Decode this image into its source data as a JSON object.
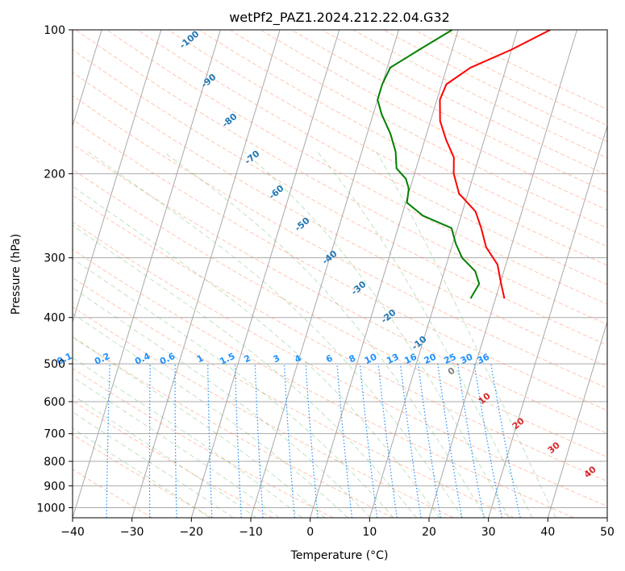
{
  "chart_data": {
    "type": "line",
    "diagram": "skew-T log-p",
    "title": "wetPf2_PAZ1.2024.212.22.04.G32",
    "xlabel": "Temperature (°C)",
    "ylabel": "Pressure (hPa)",
    "xlim": [
      -40,
      50
    ],
    "ylim": [
      1050,
      100
    ],
    "yscale": "log",
    "grid": true,
    "x_ticks": [
      -40,
      -30,
      -20,
      -10,
      0,
      10,
      20,
      30,
      40,
      50
    ],
    "y_ticks": [
      100,
      200,
      300,
      400,
      500,
      600,
      700,
      800,
      900,
      1000
    ],
    "series": [
      {
        "color": "#ff0000",
        "points": [
          {
            "p": 365,
            "t": 21.5
          },
          {
            "p": 340,
            "t": 20.2
          },
          {
            "p": 310,
            "t": 18.6
          },
          {
            "p": 285,
            "t": 15.8
          },
          {
            "p": 260,
            "t": 14.0
          },
          {
            "p": 240,
            "t": 12.2
          },
          {
            "p": 220,
            "t": 8.5
          },
          {
            "p": 200,
            "t": 6.6
          },
          {
            "p": 185,
            "t": 5.8
          },
          {
            "p": 170,
            "t": 3.6
          },
          {
            "p": 155,
            "t": 1.6
          },
          {
            "p": 140,
            "t": 0.5
          },
          {
            "p": 130,
            "t": 0.8
          },
          {
            "p": 120,
            "t": 4.0
          },
          {
            "p": 110,
            "t": 10.0
          },
          {
            "p": 100,
            "t": 15.5
          }
        ]
      },
      {
        "color": "#008000",
        "points": [
          {
            "p": 365,
            "t": 15.8
          },
          {
            "p": 340,
            "t": 16.5
          },
          {
            "p": 320,
            "t": 15.2
          },
          {
            "p": 300,
            "t": 12.3
          },
          {
            "p": 280,
            "t": 10.5
          },
          {
            "p": 260,
            "t": 9.0
          },
          {
            "p": 245,
            "t": 3.6
          },
          {
            "p": 230,
            "t": 0.2
          },
          {
            "p": 215,
            "t": -0.2
          },
          {
            "p": 205,
            "t": -1.2
          },
          {
            "p": 195,
            "t": -3.3
          },
          {
            "p": 180,
            "t": -4.3
          },
          {
            "p": 165,
            "t": -6.1
          },
          {
            "p": 150,
            "t": -8.6
          },
          {
            "p": 140,
            "t": -10.0
          },
          {
            "p": 130,
            "t": -10.0
          },
          {
            "p": 120,
            "t": -9.5
          },
          {
            "p": 110,
            "t": -5.5
          },
          {
            "p": 100,
            "t": -1.0
          }
        ]
      }
    ],
    "dry_adiabat_labels": [
      "-100",
      "-90",
      "-80",
      "-70",
      "-60",
      "-50",
      "-40",
      "-30",
      "-20",
      "-10",
      "0",
      "10",
      "20",
      "30",
      "40"
    ],
    "mixing_ratio_labels": [
      "0.1",
      "0.2",
      "0.4",
      "0.6",
      "1",
      "1.5",
      "2",
      "3",
      "4",
      "6",
      "8",
      "10",
      "13",
      "16",
      "20",
      "25",
      "30",
      "36"
    ],
    "colors": {
      "isotherm": "#a9a9a9",
      "dry_adiabat": "#ff7f50",
      "moist_adiabat": "#5fb85f",
      "mixing_ratio": "#1e90ff",
      "dry_label_cold": "#1f77b4",
      "dry_label_warm": "#d62728",
      "dry_label_zero": "#808080",
      "temperature": "#ff0000",
      "dewpoint": "#008000"
    }
  }
}
